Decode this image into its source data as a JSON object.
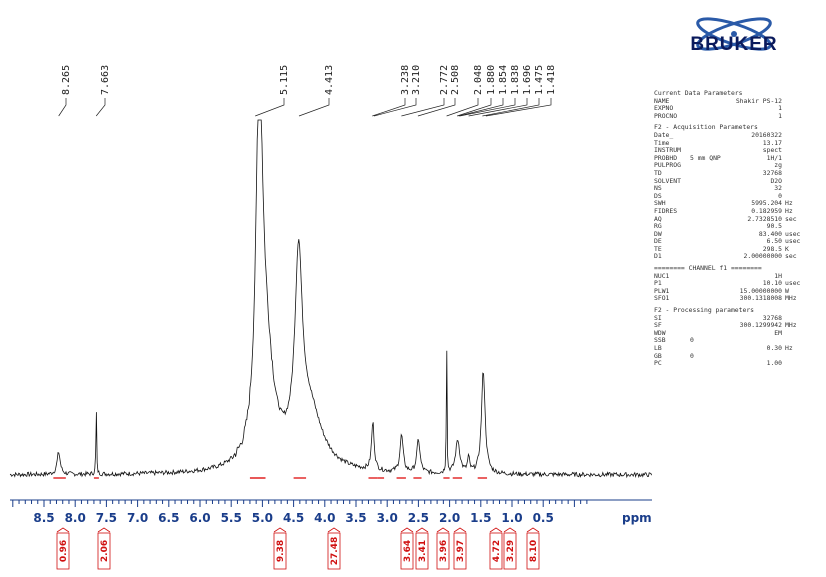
{
  "chart_data": {
    "type": "line",
    "title": "",
    "xlabel": "ppm",
    "ylabel": "",
    "xlim": [
      9.0,
      -0.2
    ],
    "x_axis_reversed": true,
    "x_ticks": [
      "8.5",
      "8.0",
      "7.5",
      "7.0",
      "6.5",
      "6.0",
      "5.5",
      "5.0",
      "4.5",
      "4.0",
      "3.5",
      "3.0",
      "2.5",
      "2.0",
      "1.5",
      "1.0",
      "0.5"
    ],
    "peak_labels": [
      "8.265",
      "7.663",
      "5.115",
      "4.413",
      "3.238",
      "3.210",
      "2.772",
      "2.508",
      "2.048",
      "1.880",
      "1.854",
      "1.838",
      "1.696",
      "1.475",
      "1.418"
    ],
    "integrals": [
      {
        "x_from": 8.35,
        "x_to": 8.15,
        "value": "0.96"
      },
      {
        "x_from": 7.7,
        "x_to": 7.62,
        "value": "2.06"
      },
      {
        "x_from": 5.2,
        "x_to": 4.95,
        "value": "9.38"
      },
      {
        "x_from": 4.5,
        "x_to": 4.3,
        "value": "27.48"
      },
      {
        "x_from": 3.3,
        "x_to": 3.15,
        "value": "3.64"
      },
      {
        "x_from": 3.15,
        "x_to": 3.05,
        "value": "3.41"
      },
      {
        "x_from": 2.85,
        "x_to": 2.7,
        "value": "3.96"
      },
      {
        "x_from": 2.58,
        "x_to": 2.45,
        "value": "3.97"
      },
      {
        "x_from": 2.1,
        "x_to": 2.0,
        "value": "4.72"
      },
      {
        "x_from": 1.95,
        "x_to": 1.8,
        "value": "3.29"
      },
      {
        "x_from": 1.55,
        "x_to": 1.4,
        "value": "8.10"
      }
    ],
    "peaks": [
      {
        "x": 8.265,
        "height": 0.06,
        "width": 0.03
      },
      {
        "x": 7.663,
        "height": 0.2,
        "width": 0.006
      },
      {
        "x": 5.05,
        "height": 0.94,
        "width": 0.06
      },
      {
        "x": 4.95,
        "height": 0.3,
        "width": 0.15
      },
      {
        "x": 4.42,
        "height": 0.5,
        "width": 0.07
      },
      {
        "x": 4.25,
        "height": 0.16,
        "width": 0.25
      },
      {
        "x": 3.23,
        "height": 0.13,
        "width": 0.025
      },
      {
        "x": 2.77,
        "height": 0.1,
        "width": 0.03
      },
      {
        "x": 2.5,
        "height": 0.09,
        "width": 0.03
      },
      {
        "x": 2.048,
        "height": 0.46,
        "width": 0.005
      },
      {
        "x": 1.87,
        "height": 0.09,
        "width": 0.04
      },
      {
        "x": 1.696,
        "height": 0.04,
        "width": 0.02
      },
      {
        "x": 1.46,
        "height": 0.28,
        "width": 0.035
      }
    ],
    "grid": false,
    "legend": "none"
  },
  "logo": {
    "text": "BRUKER"
  },
  "params": {
    "current": {
      "title": "Current Data Parameters",
      "rows": [
        {
          "k": "NAME",
          "v": "Shakir PS-12"
        },
        {
          "k": "EXPNO",
          "v": "1"
        },
        {
          "k": "PROCNO",
          "v": "1"
        }
      ]
    },
    "acquisition": {
      "title": "F2 - Acquisition Parameters",
      "rows": [
        {
          "k": "Date_",
          "u": "",
          "v": "20160322",
          "un": ""
        },
        {
          "k": "Time",
          "u": "",
          "v": "13.17",
          "un": ""
        },
        {
          "k": "INSTRUM",
          "u": "",
          "v": "spect",
          "un": ""
        },
        {
          "k": "PROBHD",
          "u": "5 mm QNP",
          "v": "1H/1",
          "un": ""
        },
        {
          "k": "PULPROG",
          "u": "",
          "v": "zg",
          "un": ""
        },
        {
          "k": "TD",
          "u": "",
          "v": "32768",
          "un": ""
        },
        {
          "k": "SOLVENT",
          "u": "",
          "v": "D2O",
          "un": ""
        },
        {
          "k": "NS",
          "u": "",
          "v": "32",
          "un": ""
        },
        {
          "k": "DS",
          "u": "",
          "v": "0",
          "un": ""
        },
        {
          "k": "SWH",
          "u": "",
          "v": "5995.204",
          "un": "Hz"
        },
        {
          "k": "FIDRES",
          "u": "",
          "v": "0.182959",
          "un": "Hz"
        },
        {
          "k": "AQ",
          "u": "",
          "v": "2.7328510",
          "un": "sec"
        },
        {
          "k": "RG",
          "u": "",
          "v": "90.5",
          "un": ""
        },
        {
          "k": "DW",
          "u": "",
          "v": "83.400",
          "un": "usec"
        },
        {
          "k": "DE",
          "u": "",
          "v": "6.50",
          "un": "usec"
        },
        {
          "k": "TE",
          "u": "",
          "v": "298.5",
          "un": "K"
        },
        {
          "k": "D1",
          "u": "",
          "v": "2.00000000",
          "un": "sec"
        }
      ]
    },
    "channel": {
      "title": "======== CHANNEL f1 ========",
      "rows": [
        {
          "k": "NUC1",
          "u": "",
          "v": "1H",
          "un": ""
        },
        {
          "k": "P1",
          "u": "",
          "v": "10.10",
          "un": "usec"
        },
        {
          "k": "PLW1",
          "u": "",
          "v": "15.00000000",
          "un": "W"
        },
        {
          "k": "SFO1",
          "u": "",
          "v": "300.1318008",
          "un": "MHz"
        }
      ]
    },
    "processing": {
      "title": "F2 - Processing parameters",
      "rows": [
        {
          "k": "SI",
          "u": "",
          "v": "32768",
          "un": ""
        },
        {
          "k": "SF",
          "u": "",
          "v": "300.1299942",
          "un": "MHz"
        },
        {
          "k": "WDW",
          "u": "",
          "v": "EM",
          "un": ""
        },
        {
          "k": "SSB",
          "u": "0",
          "v": "",
          "un": ""
        },
        {
          "k": "LB",
          "u": "",
          "v": "0.30",
          "un": "Hz"
        },
        {
          "k": "GB",
          "u": "0",
          "v": "",
          "un": ""
        },
        {
          "k": "PC",
          "u": "",
          "v": "1.00",
          "un": ""
        }
      ]
    }
  }
}
